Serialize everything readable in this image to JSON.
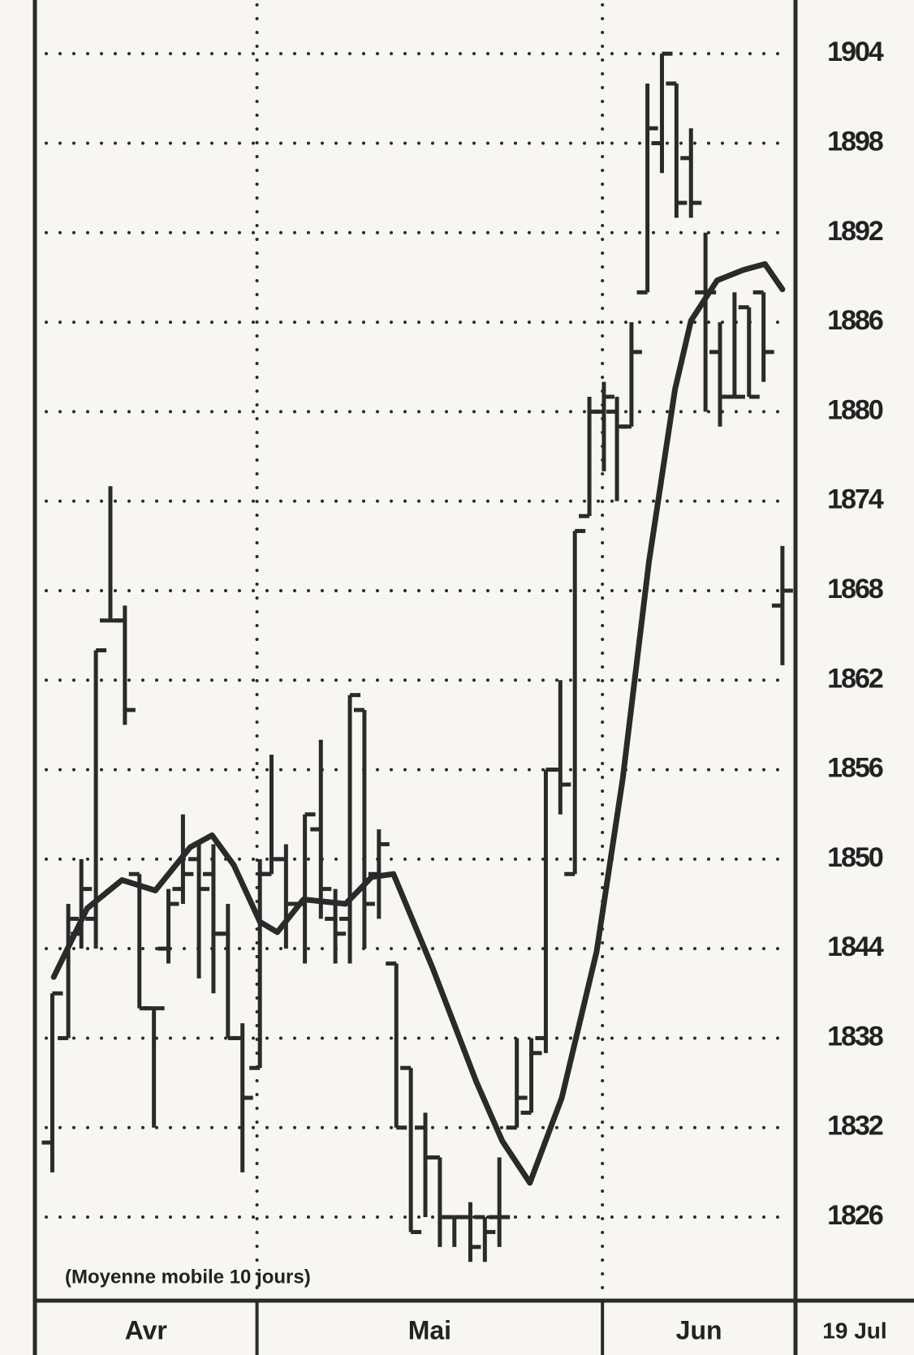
{
  "chart_data": {
    "type": "ohlc",
    "annotation": "(Moyenne mobile 10 jours)",
    "months": [
      "Avr",
      "Mai",
      "Jun"
    ],
    "date_label": "19 Jul",
    "color": "#2a2a2a",
    "xlim": [
      -1.2,
      51.2
    ],
    "xticks": [
      14.1,
      37.9
    ],
    "ylim": [
      1820.4,
      1907.6
    ],
    "yticks": [
      1826,
      1832,
      1838,
      1844,
      1850,
      1856,
      1862,
      1868,
      1874,
      1880,
      1886,
      1892,
      1898,
      1904
    ],
    "grid": true,
    "bars": {
      "x": [
        0,
        1.1,
        2.0,
        3.0,
        4.0,
        5.0,
        6.0,
        7.0,
        8.0,
        9.0,
        10.1,
        11.1,
        12.1,
        13.1,
        14.3,
        15.1,
        16.1,
        17.4,
        18.5,
        19.5,
        20.5,
        21.5,
        22.5,
        23.7,
        24.7,
        25.7,
        26.7,
        27.7,
        28.8,
        29.8,
        30.8,
        32.0,
        33.0,
        34.0,
        35.0,
        36.0,
        37.0,
        38.0,
        38.9,
        39.9,
        41.0,
        42.0,
        43.0,
        44.0,
        45.0,
        46.0,
        47.0,
        48.0,
        49.0,
        50.3
      ],
      "open": [
        1831,
        1838,
        1845,
        1846,
        1866,
        1866,
        1849,
        1840,
        1844,
        1848,
        1850,
        1849,
        1845,
        1838,
        1836,
        1849,
        1850,
        1847,
        1852,
        1846,
        1846,
        1860,
        1849,
        1843,
        1836,
        1832,
        1830,
        1826,
        1826,
        1826,
        1826,
        1832,
        1833,
        1838,
        1856,
        1849,
        1873,
        1880,
        1880,
        1879,
        1888,
        1898,
        1902,
        1897,
        1888,
        1884,
        1881,
        1887,
        1888,
        1867
      ],
      "high": [
        1841,
        1847,
        1850,
        1864,
        1875,
        1867,
        1849,
        1840,
        1848,
        1853,
        1851,
        1851,
        1847,
        1839,
        1850,
        1857,
        1851,
        1853,
        1858,
        1848,
        1861,
        1860,
        1852,
        1843,
        1836,
        1833,
        1830,
        1826,
        1827,
        1826,
        1830,
        1838,
        1838,
        1856,
        1862,
        1872,
        1881,
        1882,
        1881,
        1886,
        1902,
        1904,
        1902,
        1899,
        1892,
        1886,
        1888,
        1887,
        1888,
        1871
      ],
      "low": [
        1829,
        1838,
        1844,
        1844,
        1866,
        1859,
        1840,
        1832,
        1843,
        1847,
        1842,
        1841,
        1838,
        1829,
        1836,
        1849,
        1844,
        1843,
        1846,
        1843,
        1843,
        1844,
        1846,
        1832,
        1825,
        1826,
        1824,
        1824,
        1823,
        1823,
        1824,
        1832,
        1833,
        1837,
        1853,
        1849,
        1873,
        1876,
        1874,
        1879,
        1888,
        1896,
        1893,
        1893,
        1880,
        1879,
        1881,
        1881,
        1882,
        1863
      ],
      "close": [
        1841,
        1846,
        1848,
        1864,
        1866,
        1860,
        1840,
        1840,
        1847,
        1849,
        1848,
        1845,
        1838,
        1834,
        1849,
        1850,
        1847,
        1853,
        1848,
        1845,
        1861,
        1847,
        1851,
        1832,
        1825,
        1830,
        1826,
        1826,
        1824,
        1825,
        1826,
        1834,
        1837,
        1856,
        1855,
        1872,
        1880,
        1881,
        1879,
        1884,
        1899,
        1904,
        1894,
        1894,
        1888,
        1881,
        1881,
        1881,
        1884,
        1868
      ]
    },
    "moving_average": {
      "x": [
        0.1,
        2.4,
        4.8,
        7.1,
        9.5,
        11.0,
        12.5,
        14.3,
        15.5,
        17.3,
        20.2,
        22.0,
        23.5,
        26.2,
        29.2,
        31.0,
        32.9,
        35.1,
        37.5,
        39.3,
        41.1,
        42.9,
        44.0,
        45.8,
        47.6,
        49.1,
        50.3
      ],
      "values": [
        1842.1,
        1846.7,
        1848.6,
        1847.9,
        1850.8,
        1851.6,
        1849.6,
        1845.8,
        1845.1,
        1847.3,
        1847.0,
        1848.8,
        1849.0,
        1842.7,
        1835.1,
        1831.1,
        1828.3,
        1834.0,
        1843.8,
        1855.4,
        1869.9,
        1881.5,
        1886.1,
        1888.8,
        1889.5,
        1889.9,
        1888.2
      ]
    }
  }
}
